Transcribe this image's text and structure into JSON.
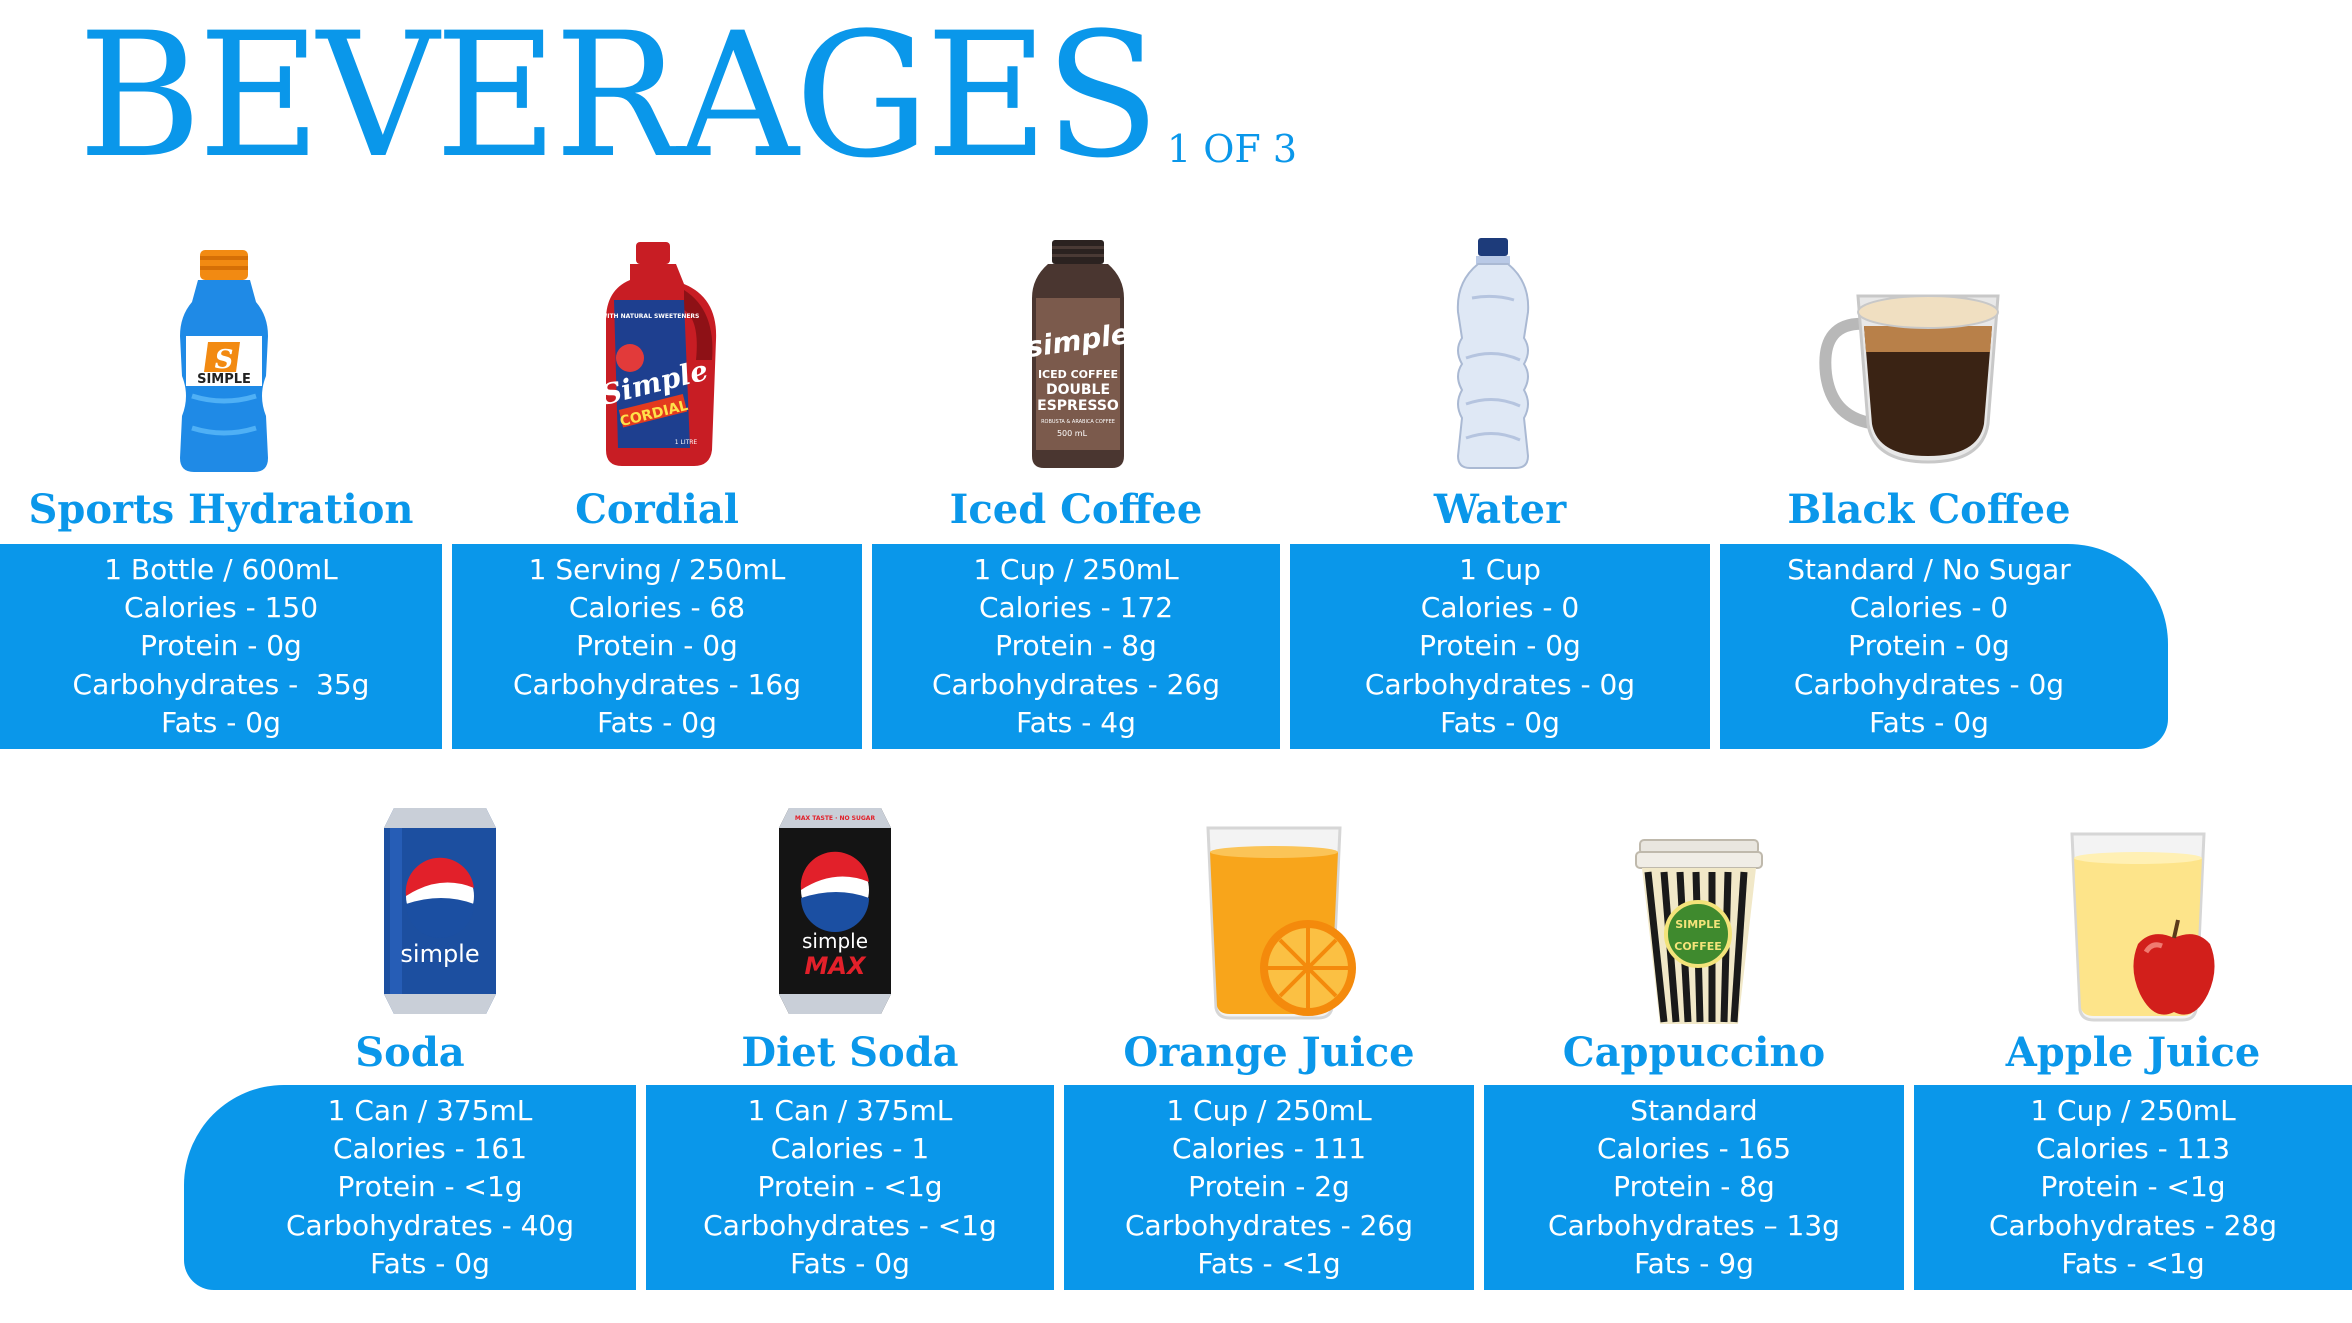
{
  "header": {
    "title": "BEVERAGES",
    "page": "1 OF 3"
  },
  "colors": {
    "accent": "#0a97ea",
    "text_on_accent": "#ffffff"
  },
  "row1": [
    {
      "name": "Sports Hydration",
      "icon": "sports-drink-bottle-icon",
      "lines": [
        "1 Bottle / 600mL",
        "Calories - 150",
        "Protein - 0g",
        "Carbohydrates -  35g",
        "Fats - 0g"
      ]
    },
    {
      "name": "Cordial",
      "icon": "cordial-jug-icon",
      "lines": [
        "1 Serving / 250mL",
        "Calories - 68",
        "Protein - 0g",
        "Carbohydrates - 16g",
        "Fats - 0g"
      ]
    },
    {
      "name": "Iced Coffee",
      "icon": "iced-coffee-bottle-icon",
      "lines": [
        "1 Cup / 250mL",
        "Calories - 172",
        "Protein - 8g",
        "Carbohydrates - 26g",
        "Fats - 4g"
      ]
    },
    {
      "name": "Water",
      "icon": "water-bottle-icon",
      "lines": [
        "1 Cup",
        "Calories - 0",
        "Protein - 0g",
        "Carbohydrates - 0g",
        "Fats - 0g"
      ]
    },
    {
      "name": "Black Coffee",
      "icon": "coffee-cup-icon",
      "lines": [
        "Standard / No Sugar",
        "Calories - 0",
        "Protein - 0g",
        "Carbohydrates - 0g",
        "Fats - 0g"
      ]
    }
  ],
  "row2": [
    {
      "name": "Soda",
      "icon": "soda-can-icon",
      "lines": [
        "1 Can / 375mL",
        "Calories - 161",
        "Protein - <1g",
        "Carbohydrates - 40g",
        "Fats - 0g"
      ]
    },
    {
      "name": "Diet Soda",
      "icon": "diet-soda-can-icon",
      "lines": [
        "1 Can / 375mL",
        "Calories - 1",
        "Protein - <1g",
        "Carbohydrates - <1g",
        "Fats - 0g"
      ]
    },
    {
      "name": "Orange Juice",
      "icon": "orange-juice-glass-icon",
      "lines": [
        "1 Cup / 250mL",
        "Calories - 111",
        "Protein - 2g",
        "Carbohydrates - 26g",
        "Fats - <1g"
      ]
    },
    {
      "name": "Cappuccino",
      "icon": "takeaway-coffee-cup-icon",
      "lines": [
        "Standard",
        "Calories - 165",
        "Protein - 8g",
        "Carbohydrates – 13g",
        "Fats - 9g"
      ]
    },
    {
      "name": "Apple Juice",
      "icon": "apple-juice-glass-icon",
      "lines": [
        "1 Cup / 250mL",
        "Calories - 113",
        "Protein - <1g",
        "Carbohydrates - 28g",
        "Fats - <1g"
      ]
    }
  ],
  "labels": {
    "sports": {
      "badge": "S",
      "brand": "SIMPLE"
    },
    "cordial": {
      "top": "WITH NATURAL SWEETENERS",
      "brand": "Simple",
      "sub": "CORDIAL",
      "vol": "1 LITRE"
    },
    "iced": {
      "brand": "simple",
      "l1": "ICED COFFEE",
      "l2": "DOUBLE",
      "l3": "ESPRESSO",
      "l4": "ROBUSTA & ARABICA COFFEE",
      "vol": "500 mL"
    },
    "soda": {
      "brand": "simple"
    },
    "diet": {
      "top": "MAX TASTE · NO SUGAR",
      "brand": "simple",
      "sub": "MAX"
    },
    "capp": {
      "l1": "SIMPLE",
      "l2": "COFFEE"
    }
  }
}
